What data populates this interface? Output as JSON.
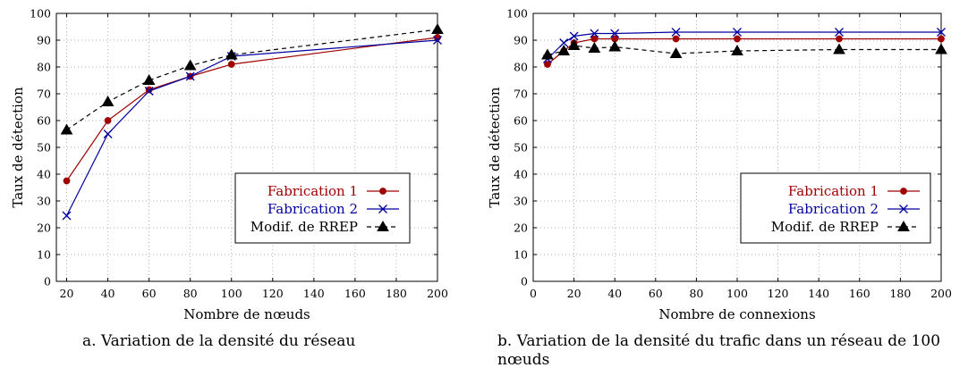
{
  "chart_data": [
    {
      "type": "line",
      "title": "",
      "xlabel": "Nombre de nœuds",
      "ylabel": "Taux de détection",
      "xlim": [
        15,
        200
      ],
      "ylim": [
        0,
        100
      ],
      "xticks": [
        20,
        40,
        60,
        80,
        100,
        120,
        140,
        160,
        180,
        200
      ],
      "yticks": [
        0,
        10,
        20,
        30,
        40,
        50,
        60,
        70,
        80,
        90,
        100
      ],
      "grid": true,
      "legend_position": "bottom-right",
      "series": [
        {
          "name": "Fabrication 1",
          "color": "#a00000",
          "marker": "circle",
          "dash": false,
          "x": [
            20,
            40,
            60,
            80,
            100,
            200
          ],
          "y": [
            37.5,
            60,
            71.5,
            76.5,
            81,
            91
          ]
        },
        {
          "name": "Fabrication 2",
          "color": "#0000a0",
          "marker": "x",
          "dash": false,
          "x": [
            20,
            40,
            60,
            80,
            100,
            200
          ],
          "y": [
            24.5,
            55,
            71,
            76.5,
            84,
            90
          ]
        },
        {
          "name": "Modif. de RREP",
          "color": "#000000",
          "marker": "triangle",
          "dash": true,
          "x": [
            20,
            40,
            60,
            80,
            100,
            200
          ],
          "y": [
            56.5,
            67,
            75,
            80.5,
            84.5,
            94
          ]
        }
      ]
    },
    {
      "type": "line",
      "title": "",
      "xlabel": "Nombre de connexions",
      "ylabel": "Taux de détection",
      "xlim": [
        0,
        200
      ],
      "ylim": [
        0,
        100
      ],
      "xticks": [
        0,
        20,
        40,
        60,
        80,
        100,
        120,
        140,
        160,
        180,
        200
      ],
      "yticks": [
        0,
        10,
        20,
        30,
        40,
        50,
        60,
        70,
        80,
        90,
        100
      ],
      "grid": true,
      "legend_position": "bottom-right",
      "series": [
        {
          "name": "Fabrication 1",
          "color": "#a00000",
          "marker": "circle",
          "dash": false,
          "x": [
            7,
            15,
            20,
            30,
            40,
            70,
            100,
            150,
            200
          ],
          "y": [
            81,
            86,
            89,
            90.5,
            90.5,
            90.5,
            90.5,
            90.5,
            90.5
          ]
        },
        {
          "name": "Fabrication 2",
          "color": "#0000a0",
          "marker": "x",
          "dash": false,
          "x": [
            7,
            15,
            20,
            30,
            40,
            70,
            100,
            150,
            200
          ],
          "y": [
            83,
            89,
            91.5,
            92.5,
            92.5,
            93,
            93,
            93,
            93
          ]
        },
        {
          "name": "Modif. de RREP",
          "color": "#000000",
          "marker": "triangle",
          "dash": true,
          "x": [
            7,
            15,
            20,
            30,
            40,
            70,
            100,
            150,
            200
          ],
          "y": [
            84.5,
            86,
            88,
            87,
            87.5,
            85,
            86,
            86.5,
            86.5
          ]
        }
      ]
    }
  ],
  "captions": {
    "a": "a. Variation de la densité du réseau",
    "b": "b. Variation de la densité du trafic dans un réseau de 100 nœuds"
  }
}
